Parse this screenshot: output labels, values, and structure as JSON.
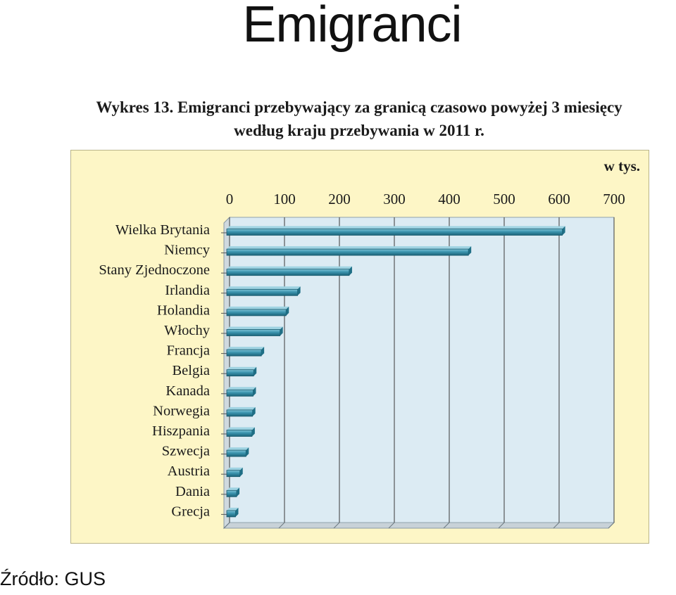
{
  "slide": {
    "title": "Emigranci",
    "source": "Źródło: GUS"
  },
  "chart_data": {
    "type": "bar",
    "orientation": "horizontal",
    "title_line1": "Wykres 13. Emigranci przebywający za granicą czasowo powyżej 3 miesięcy",
    "title_line2": "według kraju przebywania w 2011 r.",
    "unit_label": "w tys.",
    "categories": [
      "Wielka Brytania",
      "Niemcy",
      "Stany Zjednoczone",
      "Irlandia",
      "Holandia",
      "Włochy",
      "Francja",
      "Belgia",
      "Kanada",
      "Norwegia",
      "Hiszpania",
      "Szwecja",
      "Austria",
      "Dania",
      "Grecja"
    ],
    "values": [
      611,
      440,
      223,
      129,
      108,
      97,
      63,
      49,
      48,
      47,
      46,
      35,
      24,
      18,
      16
    ],
    "xlim": [
      0,
      700
    ],
    "ticks": [
      "0",
      "100",
      "200",
      "300",
      "400",
      "500",
      "600",
      "700"
    ],
    "grid": true,
    "bar_color": "#2f87a1",
    "panel_color": "#fdf6c6",
    "plot_color": "#dcebf3"
  }
}
